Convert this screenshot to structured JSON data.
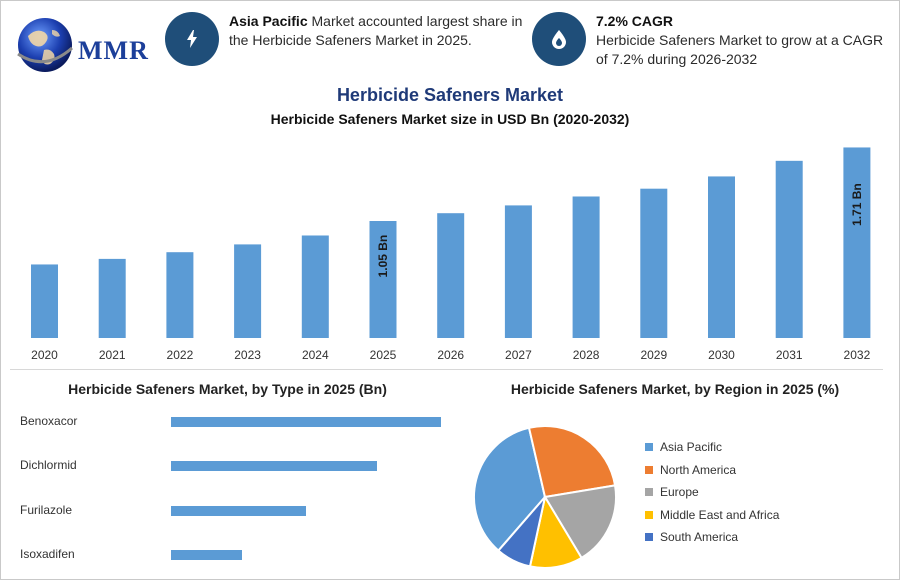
{
  "header": {
    "logo_text": "MMR",
    "info1": {
      "bold": "Asia Pacific",
      "text": " Market accounted largest share in the Herbicide Safeners Market in 2025."
    },
    "info2": {
      "bold": "7.2% CAGR",
      "text": "Herbicide Safeners Market to grow at a CAGR of 7.2% during 2026-2032"
    }
  },
  "main_title": "Herbicide Safeners Market",
  "chart_data": [
    {
      "type": "bar",
      "title": "Herbicide Safeners Market size in USD Bn (2020-2032)",
      "categories": [
        "2020",
        "2021",
        "2022",
        "2023",
        "2024",
        "2025",
        "2026",
        "2027",
        "2028",
        "2029",
        "2030",
        "2031",
        "2032"
      ],
      "values": [
        0.66,
        0.71,
        0.77,
        0.84,
        0.92,
        1.05,
        1.12,
        1.19,
        1.27,
        1.34,
        1.45,
        1.59,
        1.71
      ],
      "data_labels": {
        "2025": "1.05 Bn",
        "2032": "1.71 Bn"
      },
      "ylim": [
        0,
        1.75
      ],
      "color": "#5b9bd5"
    },
    {
      "type": "bar",
      "orientation": "horizontal",
      "title": "Herbicide Safeners Market, by Type in 2025 (Bn)",
      "categories": [
        "Benoxacor",
        "Dichlormid",
        "Furilazole",
        "Isoxadifen"
      ],
      "values": [
        0.44,
        0.335,
        0.22,
        0.115
      ],
      "xlim": [
        0,
        0.44
      ],
      "color": "#5b9bd5"
    },
    {
      "type": "pie",
      "title": "Herbicide Safeners Market, by Region in 2025 (%)",
      "categories": [
        "Asia Pacific",
        "North America",
        "Europe",
        "Middle East and Africa",
        "South America"
      ],
      "values": [
        35,
        26,
        19,
        12,
        8
      ],
      "colors": [
        "#5b9bd5",
        "#ed7d31",
        "#a5a5a5",
        "#ffc000",
        "#4472c4"
      ],
      "legend_position": "right"
    }
  ]
}
